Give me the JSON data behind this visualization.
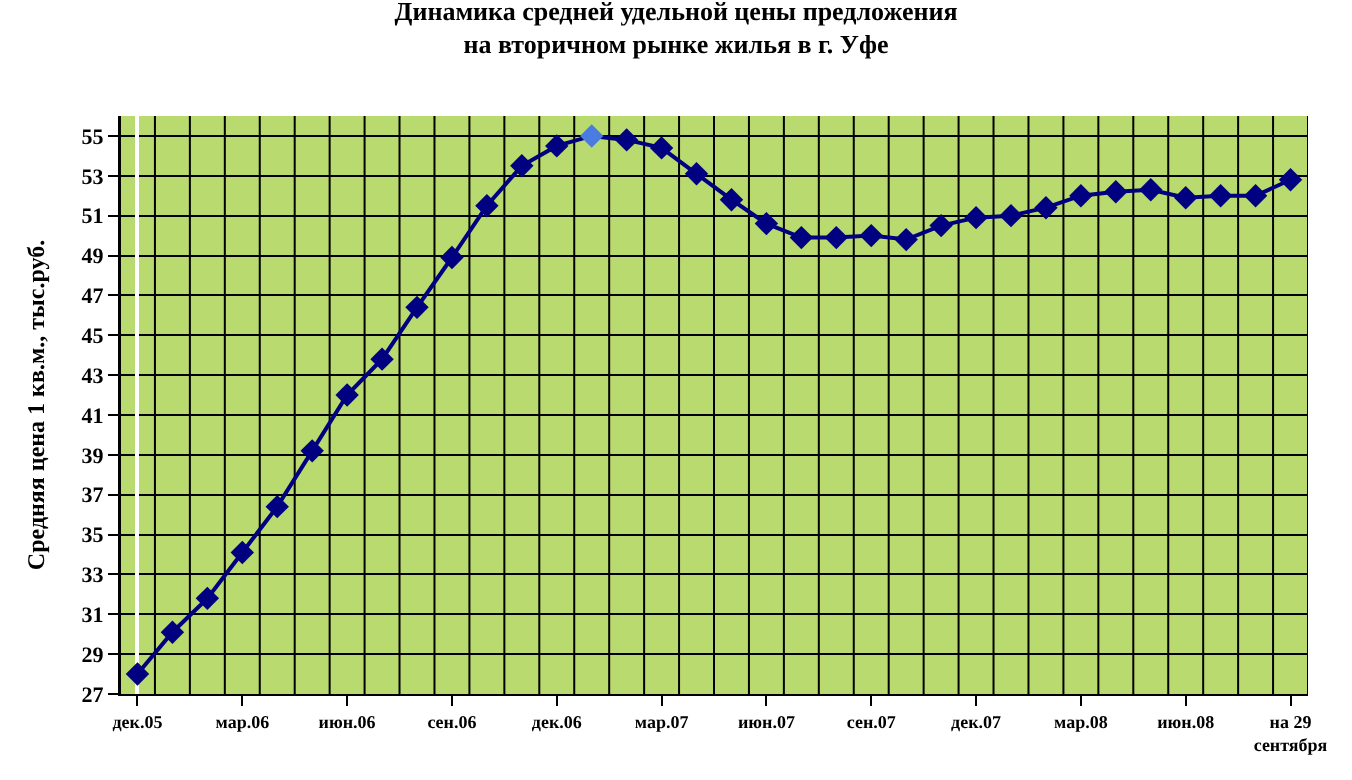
{
  "chart_data": {
    "type": "line",
    "title": "Динамика средней удельной цены предложения\nна вторичном рынке жилья в г. Уфе",
    "ylabel": "Средняя цена 1 кв.м., тыс.руб.",
    "categories": [
      "дек.05",
      null,
      null,
      "мар.06",
      null,
      null,
      "июн.06",
      null,
      null,
      "сен.06",
      null,
      null,
      "дек.06",
      null,
      null,
      "мар.07",
      null,
      null,
      "июн.07",
      null,
      null,
      "сен.07",
      null,
      null,
      "дек.07",
      null,
      null,
      "мар.08",
      null,
      null,
      "июн.08",
      null,
      null,
      "на 29 сентября"
    ],
    "series": [
      {
        "color": "#000080",
        "colors": [
          "#000080",
          "#000080",
          "#000080",
          "#000080",
          "#000080",
          "#000080",
          "#000080",
          "#000080",
          "#000080",
          "#000080",
          "#000080",
          "#000080",
          "#000080",
          "#4a7be0",
          "#000080",
          "#000080",
          "#000080",
          "#000080",
          "#000080",
          "#000080",
          "#000080",
          "#000080",
          "#000080",
          "#000080",
          "#000080",
          "#000080",
          "#000080",
          "#000080",
          "#000080",
          "#000080",
          "#000080",
          "#000080",
          "#000080",
          "#000080"
        ],
        "values": [
          28.0,
          30.1,
          31.8,
          34.1,
          36.4,
          39.2,
          42.0,
          43.8,
          46.4,
          48.9,
          51.5,
          53.5,
          54.5,
          55.0,
          54.8,
          54.4,
          53.1,
          51.8,
          50.6,
          49.9,
          49.9,
          50.0,
          49.8,
          50.5,
          50.9,
          51.0,
          51.4,
          52.0,
          52.2,
          52.3,
          51.9,
          52.0,
          52.0,
          52.8
        ]
      }
    ],
    "ylim": [
      27,
      56
    ],
    "yticks": [
      27,
      29,
      31,
      33,
      35,
      37,
      39,
      41,
      43,
      45,
      47,
      49,
      51,
      53,
      55
    ],
    "grid": true,
    "legend": false,
    "marker": "diamond",
    "line_style": "solid"
  }
}
